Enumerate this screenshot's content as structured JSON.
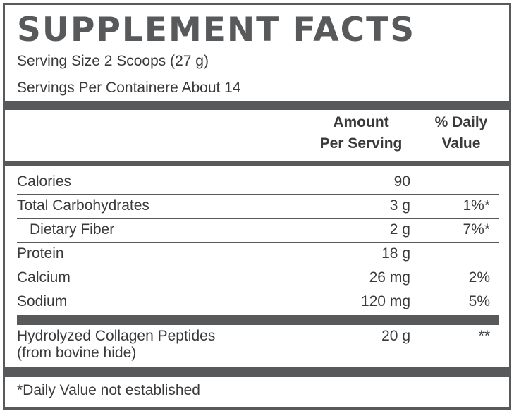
{
  "title": "SUPPLEMENT FACTS",
  "serving_size": "Serving Size 2 Scoops (27 g)",
  "servings_per_container": "Servings Per Containere About 14",
  "header": {
    "amount_line1": "Amount",
    "amount_line2": "Per Serving",
    "dv_line1": "% Daily",
    "dv_line2": "Value"
  },
  "rows": [
    {
      "label": "Calories",
      "amount": "90",
      "dv": ""
    },
    {
      "label": "Total Carbohydrates",
      "amount": "3 g",
      "dv": "1%*"
    },
    {
      "label": "Dietary Fiber",
      "amount": "2 g",
      "dv": "7%*"
    },
    {
      "label": "Protein",
      "amount": "18 g",
      "dv": ""
    },
    {
      "label": "Calcium",
      "amount": "26 mg",
      "dv": "2%"
    },
    {
      "label": "Sodium",
      "amount": "120 mg",
      "dv": "5%"
    }
  ],
  "collagen": {
    "label_line1": "Hydrolyzed Collagen Peptides",
    "label_line2": "(from bovine hide)",
    "amount": "20 g",
    "dv": "**"
  },
  "footnote": "*Daily Value not established",
  "colors": {
    "bar": "#58595b",
    "text": "#3a3a3a"
  }
}
